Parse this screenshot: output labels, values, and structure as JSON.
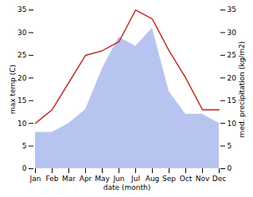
{
  "chart_data": {
    "type": "line",
    "categories": [
      "Jan",
      "Feb",
      "Mar",
      "Apr",
      "May",
      "Jun",
      "Jul",
      "Aug",
      "Sep",
      "Oct",
      "Nov",
      "Dec"
    ],
    "series": [
      {
        "type": "area",
        "axis": "y2",
        "color": "#b8c4f0",
        "values": [
          8,
          8,
          10,
          13,
          22,
          29,
          27,
          31,
          17,
          12,
          12,
          10
        ]
      },
      {
        "type": "line",
        "color": "#c0392b",
        "values": [
          10,
          13,
          19,
          25,
          26,
          28,
          35,
          33,
          26,
          20,
          13,
          13
        ]
      }
    ],
    "xlabel": "date (month)",
    "ylabel": "max temp (C)",
    "y2label": "med. precipitation (kg/m2)",
    "ylim": [
      0,
      35
    ],
    "yticks": [
      0,
      5,
      10,
      15,
      20,
      25,
      30,
      35
    ],
    "y2lim": [
      0,
      35
    ],
    "y2ticks": [
      0,
      5,
      10,
      15,
      20,
      25,
      30,
      35
    ],
    "grid": false
  }
}
